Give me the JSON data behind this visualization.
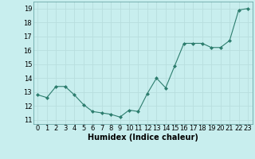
{
  "x": [
    0,
    1,
    2,
    3,
    4,
    5,
    6,
    7,
    8,
    9,
    10,
    11,
    12,
    13,
    14,
    15,
    16,
    17,
    18,
    19,
    20,
    21,
    22,
    23
  ],
  "y": [
    12.8,
    12.6,
    13.4,
    13.4,
    12.8,
    12.1,
    11.6,
    11.5,
    11.4,
    11.2,
    11.7,
    11.6,
    12.9,
    14.0,
    13.3,
    14.9,
    16.5,
    16.5,
    16.5,
    16.2,
    16.2,
    16.7,
    18.9,
    19.0
  ],
  "line_color": "#2d7d6e",
  "marker": "D",
  "marker_size": 2,
  "bg_color": "#c8eeee",
  "grid_color": "#b8dede",
  "xlabel": "Humidex (Indice chaleur)",
  "xlabel_fontsize": 7,
  "tick_fontsize": 6,
  "ylim": [
    10.7,
    19.5
  ],
  "yticks": [
    11,
    12,
    13,
    14,
    15,
    16,
    17,
    18,
    19
  ],
  "xlim": [
    -0.5,
    23.5
  ],
  "xticks": [
    0,
    1,
    2,
    3,
    4,
    5,
    6,
    7,
    8,
    9,
    10,
    11,
    12,
    13,
    14,
    15,
    16,
    17,
    18,
    19,
    20,
    21,
    22,
    23
  ]
}
